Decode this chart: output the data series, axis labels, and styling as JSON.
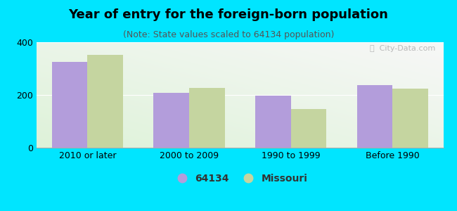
{
  "title": "Year of entry for the foreign-born population",
  "subtitle": "(Note: State values scaled to 64134 population)",
  "categories": [
    "2010 or later",
    "2000 to 2009",
    "1990 to 1999",
    "Before 1990"
  ],
  "values_64134": [
    325,
    207,
    198,
    237
  ],
  "values_missouri": [
    352,
    228,
    148,
    225
  ],
  "bar_color_64134": "#b39ddb",
  "bar_color_missouri": "#c5d5a0",
  "background_color": "#00e5ff",
  "ylim": [
    0,
    400
  ],
  "yticks": [
    0,
    200,
    400
  ],
  "legend_label_64134": "64134",
  "legend_label_missouri": "Missouri",
  "bar_width": 0.35,
  "title_fontsize": 13,
  "subtitle_fontsize": 9,
  "tick_fontsize": 9,
  "legend_fontsize": 10
}
